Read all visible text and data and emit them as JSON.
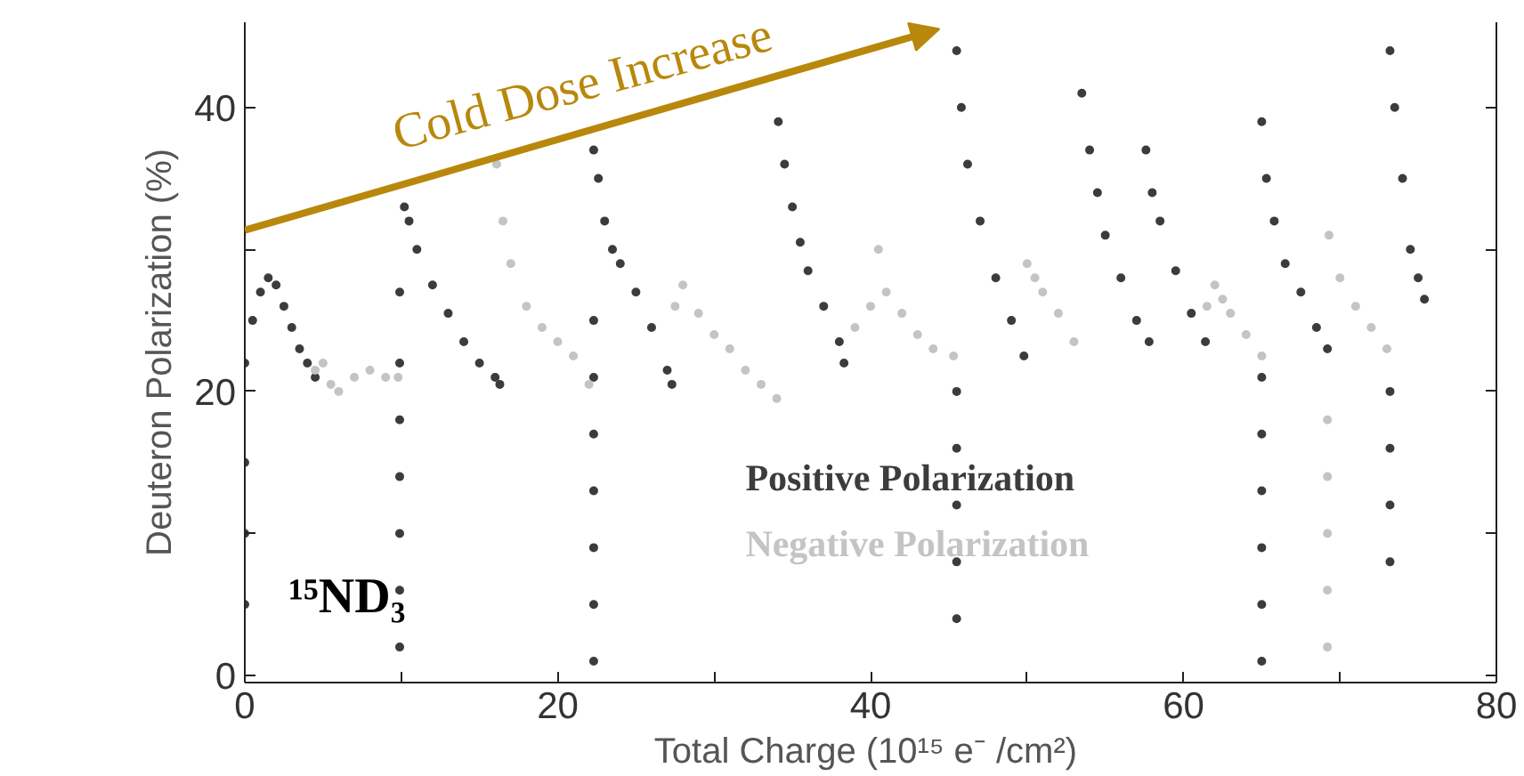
{
  "chart_data": {
    "type": "scatter",
    "xlabel": "Total Charge (10¹⁵ e⁻  /cm²)",
    "ylabel": "Deuteron Polarization (%)",
    "annotations": [
      "Cold Dose Increase",
      "¹⁵ND₃"
    ],
    "xlim": [
      0,
      80
    ],
    "ylim": [
      -0.5,
      46
    ],
    "xticks": [
      0,
      {
        "value": 10,
        "label": null
      },
      20,
      {
        "value": 30,
        "label": null
      },
      40,
      {
        "value": 50,
        "label": null
      },
      60,
      {
        "value": 70,
        "label": null
      },
      80
    ],
    "yticks": [
      0,
      {
        "value": 10,
        "label": null
      },
      20,
      {
        "value": 30,
        "label": null
      },
      40
    ],
    "marker": "circle",
    "legend": "bottom right",
    "series": [
      {
        "name": "Positive Polarization",
        "color": "#3c3c3c",
        "x": [
          0,
          0.5,
          1,
          1.5,
          2,
          2.5,
          3,
          3.5,
          4,
          4.5,
          9.9,
          10.2,
          10.5,
          11,
          12,
          13,
          14,
          15,
          16,
          16.3,
          22.3,
          22.6,
          23,
          23.5,
          24,
          25,
          26,
          27,
          27.3,
          34.1,
          34.5,
          35,
          35.5,
          36,
          37,
          38,
          38.3,
          45.5,
          45.8,
          46.2,
          47,
          48,
          49,
          49.8,
          53.5,
          54,
          54.5,
          55,
          56,
          57,
          57.8,
          57.6,
          58,
          58.5,
          59.5,
          60.5,
          61.4,
          65,
          65.3,
          65.8,
          66.5,
          67.5,
          68.5,
          69.2,
          73.2,
          73.5,
          74,
          74.5,
          75,
          75.4,
          0,
          0,
          0,
          9.9,
          9.9,
          9.9,
          9.9,
          9.9,
          9.9,
          22.3,
          22.3,
          22.3,
          22.3,
          22.3,
          22.3,
          22.3,
          45.5,
          45.5,
          45.5,
          45.5,
          45.5,
          65,
          65,
          65,
          65,
          65,
          65,
          73.2,
          73.2,
          73.2,
          73.2
        ],
        "values": [
          22,
          25,
          27,
          28,
          27.5,
          26,
          24.5,
          23,
          22,
          21,
          27,
          33,
          32,
          30,
          27.5,
          25.5,
          23.5,
          22,
          21,
          20.5,
          37,
          35,
          32,
          30,
          29,
          27,
          24.5,
          21.5,
          20.5,
          39,
          36,
          33,
          30.5,
          28.5,
          26,
          23.5,
          22,
          44,
          40,
          36,
          32,
          28,
          25,
          22.5,
          41,
          37,
          34,
          31,
          28,
          25,
          23.5,
          37,
          34,
          32,
          28.5,
          25.5,
          23.5,
          39,
          35,
          32,
          29,
          27,
          24.5,
          23,
          44,
          40,
          35,
          30,
          28,
          26.5,
          15,
          10,
          5,
          2,
          6,
          10,
          14,
          18,
          22,
          1,
          5,
          9,
          13,
          17,
          21,
          25,
          4,
          8,
          12,
          16,
          20,
          1,
          5,
          9,
          13,
          17,
          21,
          8,
          12,
          16,
          20
        ]
      },
      {
        "name": "Negative Polarization",
        "color": "#c4c4c4",
        "x": [
          4.5,
          5,
          5.5,
          6,
          7,
          8,
          9,
          9.8,
          16.1,
          16.5,
          17,
          18,
          19,
          20,
          21,
          22,
          27.5,
          28,
          29,
          30,
          31,
          32,
          33,
          34,
          39,
          40,
          40.5,
          41,
          42,
          43,
          44,
          45.3,
          50,
          50.5,
          51,
          52,
          53,
          61.5,
          62,
          62.5,
          63,
          64,
          65,
          69.3,
          70,
          71,
          72,
          73,
          69.2,
          69.2,
          69.2,
          69.2,
          69.2
        ],
        "values": [
          21.5,
          22,
          20.5,
          20,
          21,
          21.5,
          21,
          21,
          36,
          32,
          29,
          26,
          24.5,
          23.5,
          22.5,
          20.5,
          26,
          27.5,
          25.5,
          24,
          23,
          21.5,
          20.5,
          19.5,
          24.5,
          26,
          30,
          27,
          25.5,
          24,
          23,
          22.5,
          29,
          28,
          27,
          25.5,
          23.5,
          26,
          27.5,
          26.5,
          25.5,
          24,
          22.5,
          31,
          28,
          26,
          24.5,
          23,
          2,
          6,
          10,
          14,
          18
        ]
      }
    ]
  }
}
